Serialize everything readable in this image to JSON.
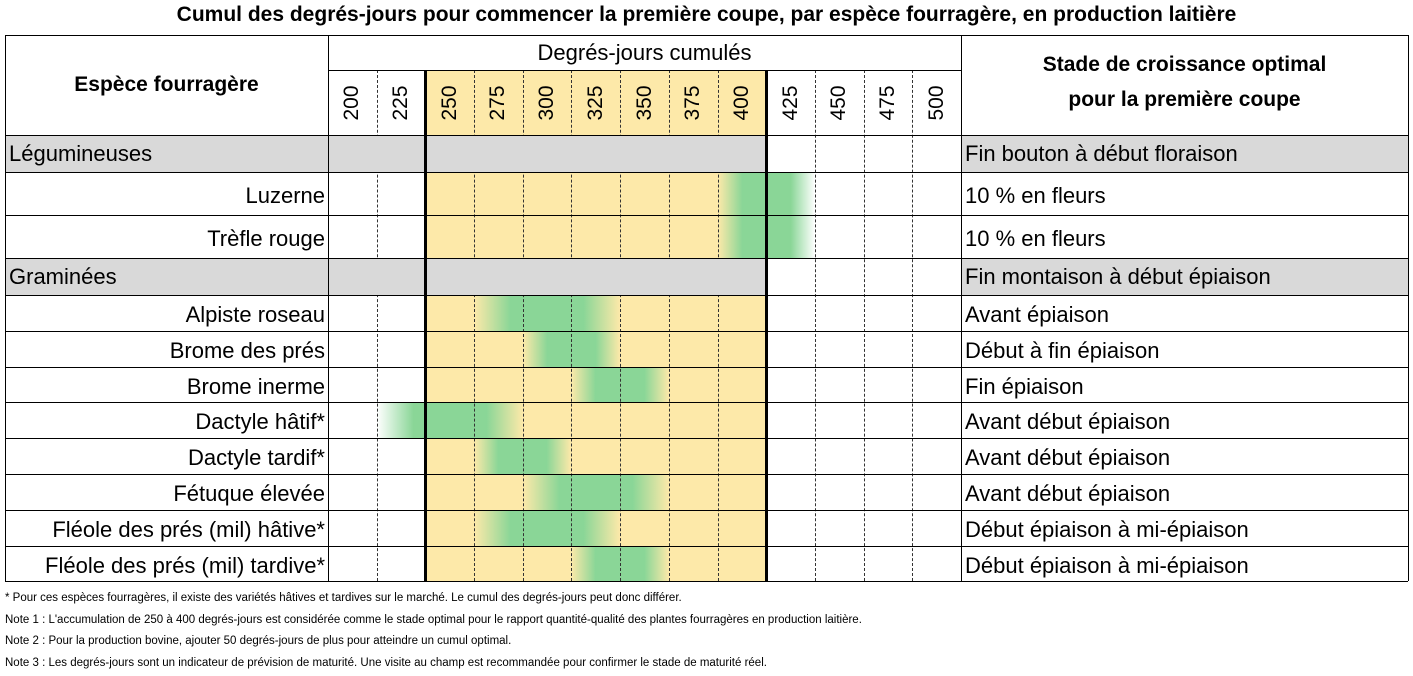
{
  "title": "Cumul des degrés-jours pour commencer la première coupe, par espèce fourragère, en production laitière",
  "header": {
    "species": "Espèce fourragère",
    "degree_days": "Degrés-jours cumulés",
    "stage": [
      "Stade de croissance optimal",
      "pour la première coupe"
    ]
  },
  "columns": [
    200,
    225,
    250,
    275,
    300,
    325,
    350,
    375,
    400,
    425,
    450,
    475,
    500
  ],
  "optimal_range": [
    250,
    400
  ],
  "groups": [
    {
      "name": "Légumineuses",
      "stage": "Fin bouton à début floraison",
      "rows": [
        {
          "species": "Luzerne",
          "stage": "10 % en fleurs",
          "range": [
            400,
            425
          ]
        },
        {
          "species": "Trèfle rouge",
          "stage": "10 % en fleurs",
          "range": [
            400,
            425
          ]
        }
      ]
    },
    {
      "name": "Graminées",
      "stage": "Fin montaison à début épiaison",
      "rows": [
        {
          "species": "Alpiste roseau",
          "stage": "Avant épiaison",
          "range": [
            275,
            325
          ]
        },
        {
          "species": "Brome des prés",
          "stage": "Début à fin épiaison",
          "range": [
            300,
            325
          ]
        },
        {
          "species": "Brome inerme",
          "stage": "Fin épiaison",
          "range": [
            325,
            350
          ]
        },
        {
          "species": "Dactyle hâtif*",
          "stage": "Avant début épiaison",
          "range": [
            225,
            275
          ]
        },
        {
          "species": "Dactyle tardif*",
          "stage": "Avant début épiaison",
          "range": [
            275,
            300
          ]
        },
        {
          "species": "Fétuque élevée",
          "stage": "Avant début épiaison",
          "range": [
            300,
            350
          ]
        },
        {
          "species": "Fléole des prés (mil) hâtive*",
          "stage": "Début épiaison à mi-épiaison",
          "range": [
            275,
            325
          ]
        },
        {
          "species": "Fléole des prés (mil) tardive*",
          "stage": "Début épiaison à mi-épiaison",
          "range": [
            325,
            350
          ]
        }
      ]
    }
  ],
  "notes": [
    "* Pour ces espèces fourragères, il existe des variétés hâtives et tardives sur le marché. Le cumul des degrés-jours peut donc différer.",
    "Note 1 : L'accumulation de 250 à 400 degrés-jours est considérée comme le stade optimal pour le rapport quantité-qualité des plantes fourragères en production laitière.",
    "Note 2 : Pour la production bovine, ajouter 50 degrés-jours de plus pour atteindre un cumul optimal.",
    "Note 3 : Les degrés-jours sont un indicateur de prévision de maturité. Une visite au champ est recommandée pour confirmer le stade de maturité réel."
  ]
}
